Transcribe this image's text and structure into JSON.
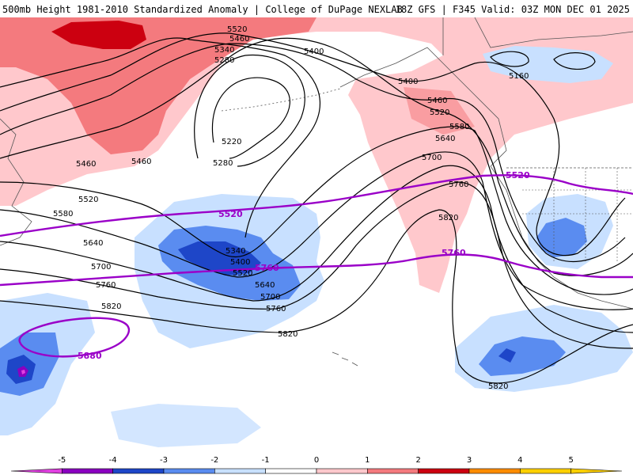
{
  "header": {
    "title_left": "500mb Height 1981-2010 Standardized Anomaly | College of DuPage NEXLAB",
    "title_right": "18Z GFS | F345 Valid: 03Z MON DEC 01 2025"
  },
  "colors": {
    "pos1": "#ffc8cc",
    "pos2": "#f47a7e",
    "pos3": "#cc0010",
    "neg1": "#c8e0ff",
    "neg2": "#5a8cf0",
    "neg3": "#1e46c8",
    "neg4": "#0a28a0",
    "contour": "#000000",
    "thickness": "#9a00c8",
    "land": "#555555"
  },
  "contour_labels": {
    "c5160": "5160",
    "c5220": "5220",
    "c5280": "5280",
    "c5340": "5340",
    "c5400": "5400",
    "c5460": "5460",
    "c5520": "5520",
    "c5580": "5580",
    "c5640": "5640",
    "c5700": "5700",
    "c5760": "5760",
    "c5820": "5820"
  },
  "thickness_labels": {
    "t5520": "5520",
    "t5760": "5760",
    "t5880": "5880"
  },
  "legend": {
    "ticks": [
      "-5",
      "-4",
      "-3",
      "-2",
      "-1",
      "0",
      "1",
      "2",
      "3",
      "4",
      "5"
    ],
    "colors": [
      "#e040e0",
      "#8a00c0",
      "#1e46c8",
      "#5a8cf0",
      "#c8e0ff",
      "#ffffff",
      "#ffc8cc",
      "#f47a7e",
      "#cc0010",
      "#ff8c00",
      "#ffd000"
    ]
  }
}
